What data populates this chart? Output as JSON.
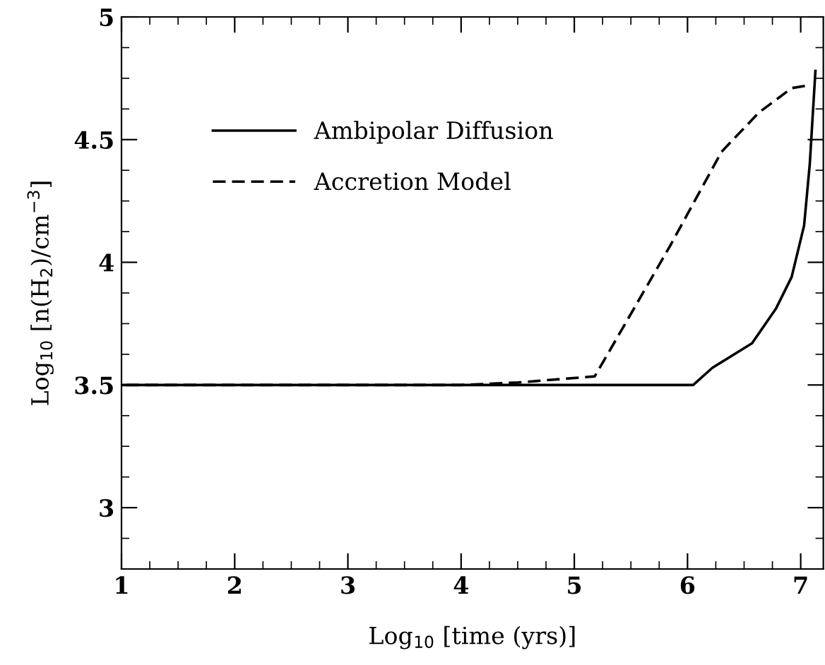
{
  "chart_data": {
    "type": "line",
    "xlabel": "Log$_{10}$ [time (yrs)]",
    "ylabel": "Log$_{10}$ [n(H$_{2}$)/cm$^{−3}$]",
    "xlim": [
      1,
      7.2
    ],
    "ylim": [
      2.75,
      5
    ],
    "xticks": [
      1,
      2,
      3,
      4,
      5,
      6,
      7
    ],
    "yticks": [
      3,
      3.5,
      4,
      4.5,
      5
    ],
    "grid": false,
    "legend": "top left",
    "marker": "none",
    "series": [
      {
        "name": "Ambipolar Diffusion",
        "color": "#000000",
        "line_style": "solid",
        "x": [
          1,
          2,
          3,
          4,
          5,
          6.05,
          6.22,
          6.57,
          6.78,
          6.92,
          7.03,
          7.08,
          7.13
        ],
        "values": [
          3.5,
          3.5,
          3.5,
          3.5,
          3.5,
          3.5,
          3.57,
          3.67,
          3.81,
          3.94,
          4.15,
          4.4,
          4.78
        ]
      },
      {
        "name": "Accretion Model",
        "color": "#000000",
        "line_style": "dashed",
        "x": [
          1,
          2,
          3,
          4,
          4.5,
          5.18,
          5.3,
          5.85,
          6.3,
          6.63,
          6.92,
          7.05
        ],
        "values": [
          3.5,
          3.5,
          3.5,
          3.5,
          3.51,
          3.535,
          3.63,
          4.07,
          4.45,
          4.61,
          4.71,
          4.72
        ]
      }
    ]
  }
}
